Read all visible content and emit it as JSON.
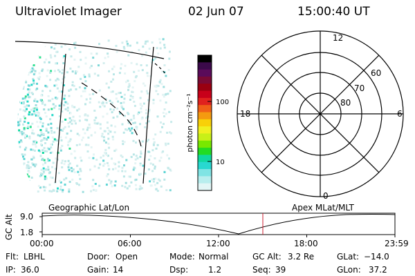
{
  "header": {
    "instrument": "Ultraviolet Imager",
    "date": "02 Jun 07",
    "time": "15:00:40 UT"
  },
  "colorbar": {
    "unit_label": "photon cm⁻²s⁻¹",
    "ticks": [
      "100",
      "10"
    ],
    "colors": [
      "#000000",
      "#3b0a4a",
      "#5a0b5a",
      "#7a0a35",
      "#9a0010",
      "#c8001a",
      "#e0221e",
      "#f06018",
      "#f49a10",
      "#f8d008",
      "#f0f020",
      "#c8f018",
      "#78e800",
      "#22dc22",
      "#10d8a0",
      "#28d8d0",
      "#80e4e4",
      "#b8eeee",
      "#e2f6f6"
    ]
  },
  "polar": {
    "lat_labels": [
      "60",
      "70",
      "80"
    ],
    "mlt_labels": {
      "top": "12",
      "left": "18",
      "right": "6",
      "bottom": "0"
    }
  },
  "altplot": {
    "left_title": "Geographic Lat/Lon",
    "right_title": "Apex MLat/MLT",
    "ylabel": "GC Alt",
    "yticks": [
      "9.0",
      "1.8"
    ],
    "xticks": [
      "00:00",
      "06:00",
      "12:00",
      "18:00",
      "23:59"
    ],
    "marker_time": "15:00"
  },
  "info": {
    "row1": [
      {
        "label": "Flt:",
        "value": "LBHL"
      },
      {
        "label": "Door:",
        "value": "Open"
      },
      {
        "label": "Mode:",
        "value": "Normal"
      },
      {
        "label": "GC Alt:",
        "value": "3.2 Re"
      },
      {
        "label": "GLat:",
        "value": "−14.0"
      }
    ],
    "row2": [
      {
        "label": "IP:",
        "value": "36.0"
      },
      {
        "label": "Gain:",
        "value": "14"
      },
      {
        "label": "Dsp:",
        "value": "1.2"
      },
      {
        "label": "Seq:",
        "value": "39"
      },
      {
        "label": "GLon:",
        "value": "37.2"
      }
    ]
  }
}
